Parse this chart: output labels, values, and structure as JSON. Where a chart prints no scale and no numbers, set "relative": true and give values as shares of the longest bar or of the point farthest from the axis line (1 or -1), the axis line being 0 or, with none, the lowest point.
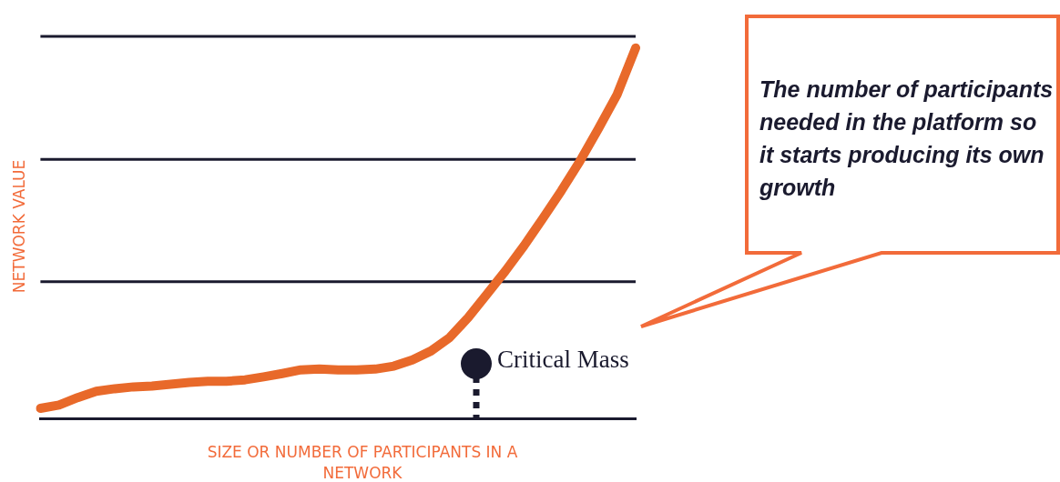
{
  "chart_data": {
    "type": "line",
    "relative": true,
    "ylabel": "NETWORK VALUE",
    "xlabel": "SIZE OR NUMBER OF PARTICIPANTS IN A NETWORK",
    "tick_labels": false,
    "legend": false,
    "categories": [
      null,
      null,
      null,
      null,
      null,
      null,
      null,
      null,
      null,
      null,
      null,
      null,
      null,
      null,
      null,
      null,
      null,
      null,
      null,
      null,
      null,
      null,
      null,
      null,
      null,
      null,
      null,
      null,
      null,
      null,
      null,
      null,
      null
    ],
    "series": [
      {
        "color": "#e8692a",
        "values": [
          0.027,
          0.036,
          0.056,
          0.073,
          0.08,
          0.085,
          0.087,
          0.092,
          0.097,
          0.1,
          0.1,
          0.104,
          0.112,
          0.121,
          0.131,
          0.133,
          0.131,
          0.131,
          0.133,
          0.141,
          0.158,
          0.182,
          0.218,
          0.272,
          0.335,
          0.398,
          0.466,
          0.539,
          0.614,
          0.694,
          0.782,
          0.874,
          1
        ]
      }
    ],
    "ref_lines": [
      {
        "axis": "y",
        "value": 0.369,
        "color": "#1a1a2e"
      },
      {
        "axis": "y",
        "value": 0.699,
        "color": "#1a1a2e"
      },
      {
        "axis": "y",
        "value": 1.031,
        "color": "#1a1a2e"
      }
    ],
    "annotations": [
      "Critical Mass",
      "The number of participants needed in the platform so it starts producing its own growth"
    ]
  }
}
